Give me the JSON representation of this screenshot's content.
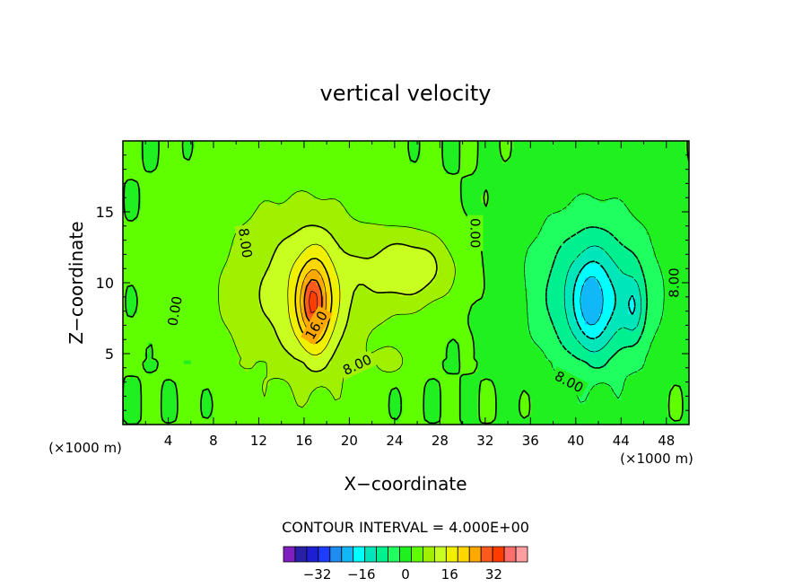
{
  "chart_data": {
    "type": "heatmap",
    "title": "vertical velocity",
    "xlabel": "X−coordinate",
    "ylabel": "Z−coordinate",
    "x_unit_left": "(×1000 m)",
    "x_unit_right": "(×1000 m)",
    "xlim": [
      0,
      50
    ],
    "ylim": [
      0,
      20
    ],
    "x_ticks": [
      4,
      8,
      12,
      16,
      20,
      24,
      28,
      32,
      36,
      40,
      44,
      48
    ],
    "x_tick_labels": [
      "4",
      "8",
      "12",
      "16",
      "20",
      "24",
      "28",
      "32",
      "36",
      "40",
      "44",
      "48"
    ],
    "y_ticks": [
      5,
      10,
      15
    ],
    "y_tick_labels": [
      "5",
      "10",
      "15"
    ],
    "contour_interval_text": "CONTOUR INTERVAL = 4.000E+00",
    "contour_labels": [
      {
        "text": "0.00",
        "x": 4.6,
        "z": 8.0,
        "angle": -80
      },
      {
        "text": "8.00",
        "x": 10.8,
        "z": 12.8,
        "angle": 82
      },
      {
        "text": "16.0",
        "x": 17.1,
        "z": 7.0,
        "angle": -60
      },
      {
        "text": "8.00",
        "x": 20.7,
        "z": 4.2,
        "angle": -25
      },
      {
        "text": "0.00",
        "x": 31.1,
        "z": 13.5,
        "angle": 90
      },
      {
        "text": "8.00",
        "x": 48.7,
        "z": 10.0,
        "angle": -90
      },
      {
        "text": "8.00",
        "x": 39.4,
        "z": 3.0,
        "angle": 28
      }
    ],
    "colorbar": {
      "levels": [
        -40,
        -36,
        -32,
        -28,
        -24,
        -20,
        -16,
        -12,
        -8,
        -4,
        0,
        4,
        8,
        12,
        16,
        20,
        24,
        28,
        32,
        36,
        40
      ],
      "colors": [
        "#7f1fbf",
        "#2a20a8",
        "#1e1ed2",
        "#1e3cff",
        "#1e8cf0",
        "#10b8f8",
        "#00ffff",
        "#00e6bb",
        "#00f090",
        "#20ff60",
        "#20f020",
        "#60ff00",
        "#a0f000",
        "#c8ff20",
        "#f0f000",
        "#ffd700",
        "#ffa800",
        "#ff5a1e",
        "#ff3c00",
        "#ff6e6e",
        "#ff9e9e"
      ],
      "tick_values": [
        -32,
        -16,
        0,
        16,
        32
      ],
      "tick_labels": [
        "−32",
        "−16",
        "0",
        "16",
        "32"
      ]
    },
    "field_features": [
      {
        "kind": "updraft",
        "x": 16.8,
        "z": 8.6,
        "peak": 30
      },
      {
        "kind": "updraft-secondary",
        "x": 25.5,
        "z": 11.0,
        "peak": 10
      },
      {
        "kind": "downdraft",
        "x": 41.3,
        "z": 8.5,
        "peak": -24
      },
      {
        "kind": "downdraft-secondary",
        "x": 45.2,
        "z": 8.3,
        "peak": -18
      }
    ]
  }
}
